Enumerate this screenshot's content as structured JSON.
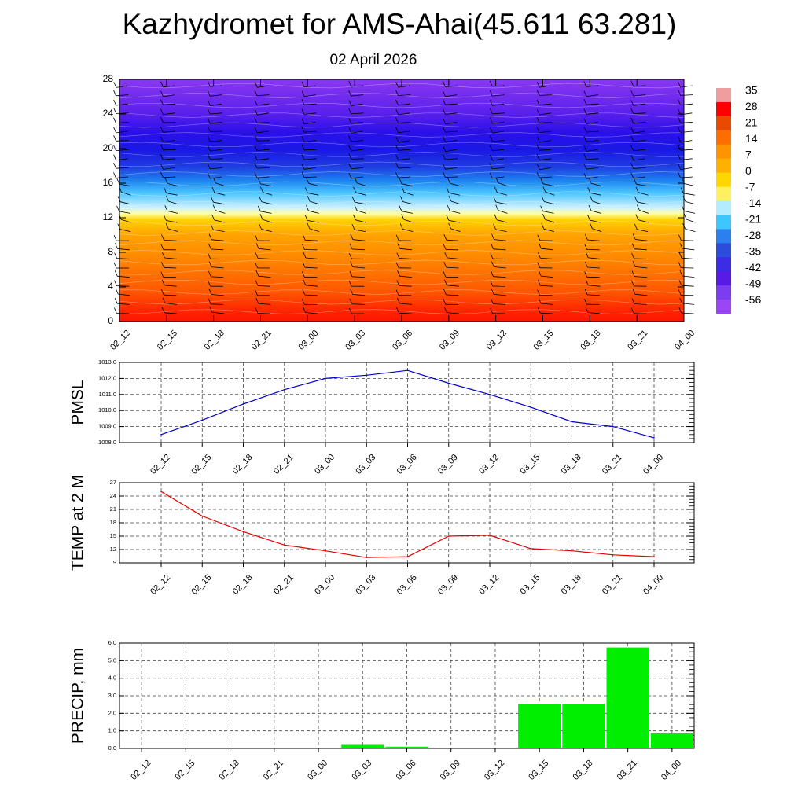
{
  "title": "Kazhydromet for AMS-Ahai(45.611 63.281)",
  "subtitle": "02 April 2026",
  "time_labels": [
    "02_12",
    "02_15",
    "02_18",
    "02_21",
    "03_00",
    "03_03",
    "03_06",
    "03_09",
    "03_12",
    "03_15",
    "03_18",
    "03_21",
    "04_00"
  ],
  "chart_data": [
    {
      "name": "cross-section",
      "type": "heatmap",
      "title": "",
      "xlabel": "",
      "ylabel": "",
      "categories": [
        "02_12",
        "02_15",
        "02_18",
        "02_21",
        "03_00",
        "03_03",
        "03_06",
        "03_09",
        "03_12",
        "03_15",
        "03_18",
        "03_21",
        "04_00"
      ],
      "ylim": [
        0,
        28
      ],
      "yticks": [
        "0",
        "4",
        "8",
        "12",
        "16",
        "20",
        "24",
        "28"
      ],
      "colorbar": {
        "labels": [
          "35",
          "28",
          "21",
          "14",
          "7",
          "0",
          "-7",
          "-14",
          "-21",
          "-28",
          "-35",
          "-42",
          "-49",
          "-56"
        ],
        "colors": [
          "#ef9d9d",
          "#ff0000",
          "#e84a00",
          "#ff6d00",
          "#ff9300",
          "#ffb100",
          "#ffd700",
          "#fff060",
          "#b4ecff",
          "#3cc8ff",
          "#2b80f0",
          "#2c4cdc",
          "#3c2ce6",
          "#5a1ae6",
          "#7c3cf0",
          "#9b46f5"
        ]
      }
    },
    {
      "name": "pmsl",
      "type": "line",
      "title": "",
      "xlabel": "",
      "ylabel": "PMSL",
      "categories": [
        "02_12",
        "02_15",
        "02_18",
        "02_21",
        "03_00",
        "03_03",
        "03_06",
        "03_09",
        "03_12",
        "03_15",
        "03_18",
        "03_21",
        "04_00"
      ],
      "values": [
        1008.5,
        1009.4,
        1010.4,
        1011.3,
        1012.0,
        1012.2,
        1012.5,
        1011.7,
        1011.0,
        1010.2,
        1009.3,
        1009.0,
        1008.3
      ],
      "ylim": [
        1008,
        1013
      ],
      "yticks": [
        "1008.0",
        "1009.0",
        "1010.0",
        "1011.0",
        "1012.0",
        "1013.0"
      ],
      "color": "#0000cc"
    },
    {
      "name": "temp",
      "type": "line",
      "title": "",
      "xlabel": "",
      "ylabel": "TEMP at 2 M",
      "categories": [
        "02_12",
        "02_15",
        "02_18",
        "02_21",
        "03_00",
        "03_03",
        "03_06",
        "03_09",
        "03_12",
        "03_15",
        "03_18",
        "03_21",
        "04_00"
      ],
      "values": [
        25.0,
        19.5,
        16.0,
        13.0,
        11.7,
        10.2,
        10.4,
        15.0,
        15.2,
        12.2,
        11.7,
        10.8,
        10.4
      ],
      "ylim": [
        9,
        27
      ],
      "yticks": [
        "9",
        "12",
        "15",
        "18",
        "21",
        "24",
        "27"
      ],
      "color": "#e00000"
    },
    {
      "name": "precip",
      "type": "bar",
      "title": "",
      "xlabel": "",
      "ylabel": "PRECIP, mm",
      "categories": [
        "02_12",
        "02_15",
        "02_18",
        "02_21",
        "03_00",
        "03_03",
        "03_06",
        "03_09",
        "03_12",
        "03_15",
        "03_18",
        "03_21",
        "04_00"
      ],
      "values": [
        0,
        0,
        0,
        0,
        0,
        0.2,
        0.1,
        0,
        0,
        2.55,
        2.55,
        5.75,
        0.85
      ],
      "ylim": [
        0,
        6
      ],
      "yticks": [
        "0.0",
        "1.0",
        "2.0",
        "3.0",
        "4.0",
        "5.0",
        "6.0"
      ],
      "color": "#00ee00"
    }
  ]
}
